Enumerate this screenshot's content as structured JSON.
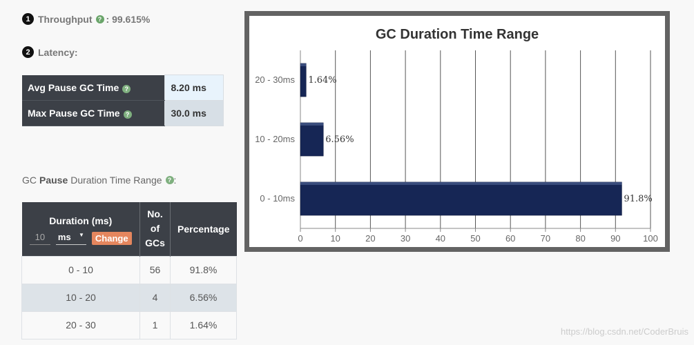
{
  "throughput": {
    "number": "1",
    "label": "Throughput",
    "value": ": 99.615%"
  },
  "latency": {
    "number": "2",
    "label": "Latency:",
    "rows": [
      {
        "label": "Avg Pause GC Time",
        "value": "8.20 ms"
      },
      {
        "label": "Max Pause GC Time",
        "value": "30.0 ms"
      }
    ]
  },
  "range_section": {
    "prefix": "GC",
    "bold": "Pause",
    "suffix": "Duration Time Range",
    "colon": ":"
  },
  "gc_table": {
    "headers": {
      "duration": "Duration (ms)",
      "count": "No. of GCs",
      "percentage": "Percentage"
    },
    "input_value": "10",
    "unit_selected": "ms",
    "change_label": "Change",
    "rows": [
      {
        "duration": "0 - 10",
        "count": "56",
        "percentage": "91.8%"
      },
      {
        "duration": "10 - 20",
        "count": "4",
        "percentage": "6.56%"
      },
      {
        "duration": "20 - 30",
        "count": "1",
        "percentage": "1.64%"
      }
    ]
  },
  "chart_data": {
    "type": "bar",
    "orientation": "horizontal",
    "title": "GC Duration Time Range",
    "categories": [
      "20 - 30ms",
      "10 - 20ms",
      "0 - 10ms"
    ],
    "values": [
      1.64,
      6.56,
      91.8
    ],
    "data_labels": [
      "1.64%",
      "6.56%",
      "91.8%"
    ],
    "xlim": [
      0,
      100
    ],
    "xticks": [
      "0",
      "10",
      "20",
      "30",
      "40",
      "50",
      "60",
      "70",
      "80",
      "90",
      "100"
    ],
    "grid": "vertical",
    "bar_color": "#162655"
  },
  "watermark": "https://blog.csdn.net/CoderBruis",
  "icons": {
    "help": "question-circle-icon",
    "dropdown": "caret-down-icon"
  }
}
